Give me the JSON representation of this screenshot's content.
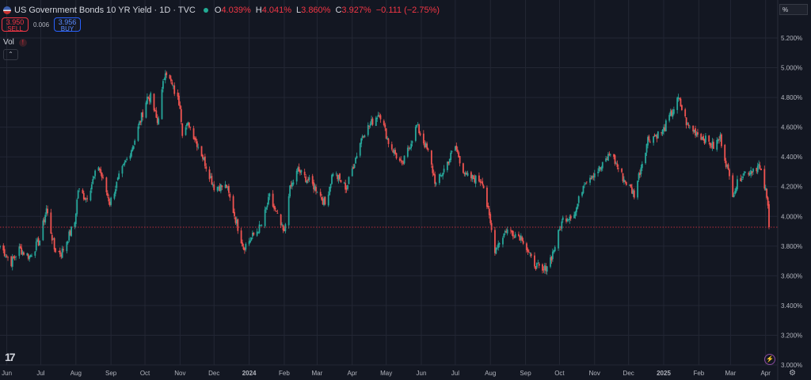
{
  "header": {
    "title": "US Government Bonds 10 YR Yield · 1D · TVC",
    "o_label": "O",
    "o_value": "4.039%",
    "h_label": "H",
    "h_value": "4.041%",
    "l_label": "L",
    "l_value": "3.860%",
    "c_label": "C",
    "c_value": "3.927%",
    "change": "−0.111 (−2.75%)"
  },
  "trade": {
    "sell_price": "3.950",
    "sell_label": "SELL",
    "spread": "0.006",
    "buy_price": "3.956",
    "buy_label": "BUY"
  },
  "volume_label": "Vol",
  "unit_toggle": "%",
  "colors": {
    "background": "#131722",
    "up": "#26a69a",
    "down": "#ef5350",
    "grid": "#2a2e39",
    "price_line": "#f23645"
  },
  "icons": [
    "us-flag-icon",
    "market-status-icon",
    "volume-warning-icon",
    "collapse-chevron-icon",
    "tradingview-logo-icon",
    "lightning-icon",
    "settings-gear-icon"
  ],
  "chart_data": {
    "type": "candlestick",
    "ylim": [
      3.0,
      5.3
    ],
    "y_ticks": [
      "5.200%",
      "5.000%",
      "4.800%",
      "4.600%",
      "4.400%",
      "4.200%",
      "4.000%",
      "3.800%",
      "3.600%",
      "3.400%",
      "3.200%",
      "3.000%"
    ],
    "x_ticks": [
      "Jun",
      "Jul",
      "Aug",
      "Sep",
      "Oct",
      "Nov",
      "Dec",
      "2024",
      "Feb",
      "Mar",
      "Apr",
      "May",
      "Jun",
      "Jul",
      "Aug",
      "Sep",
      "Oct",
      "Nov",
      "Dec",
      "2025",
      "Feb",
      "Mar",
      "Apr"
    ],
    "current_price": 3.927,
    "grid": true,
    "close_path": [
      [
        "2023-05-26",
        3.8
      ],
      [
        "2023-06-05",
        3.69
      ],
      [
        "2023-06-12",
        3.78
      ],
      [
        "2023-06-21",
        3.73
      ],
      [
        "2023-06-30",
        3.84
      ],
      [
        "2023-07-06",
        4.05
      ],
      [
        "2023-07-13",
        3.78
      ],
      [
        "2023-07-19",
        3.75
      ],
      [
        "2023-07-31",
        3.96
      ],
      [
        "2023-08-03",
        4.18
      ],
      [
        "2023-08-10",
        4.12
      ],
      [
        "2023-08-21",
        4.34
      ],
      [
        "2023-08-31",
        4.09
      ],
      [
        "2023-09-08",
        4.26
      ],
      [
        "2023-09-21",
        4.49
      ],
      [
        "2023-10-03",
        4.8
      ],
      [
        "2023-10-06",
        4.8
      ],
      [
        "2023-10-12",
        4.63
      ],
      [
        "2023-10-19",
        4.99
      ],
      [
        "2023-10-27",
        4.84
      ],
      [
        "2023-11-01",
        4.75
      ],
      [
        "2023-11-03",
        4.57
      ],
      [
        "2023-11-09",
        4.62
      ],
      [
        "2023-11-20",
        4.42
      ],
      [
        "2023-12-01",
        4.2
      ],
      [
        "2023-12-12",
        4.2
      ],
      [
        "2023-12-27",
        3.79
      ],
      [
        "2024-01-12",
        3.94
      ],
      [
        "2024-01-19",
        4.13
      ],
      [
        "2024-02-01",
        3.88
      ],
      [
        "2024-02-05",
        4.16
      ],
      [
        "2024-02-13",
        4.31
      ],
      [
        "2024-03-01",
        4.18
      ],
      [
        "2024-03-08",
        4.08
      ],
      [
        "2024-03-15",
        4.3
      ],
      [
        "2024-03-27",
        4.19
      ],
      [
        "2024-04-10",
        4.55
      ],
      [
        "2024-04-25",
        4.7
      ],
      [
        "2024-05-03",
        4.5
      ],
      [
        "2024-05-15",
        4.34
      ],
      [
        "2024-05-28",
        4.61
      ],
      [
        "2024-06-07",
        4.43
      ],
      [
        "2024-06-14",
        4.21
      ],
      [
        "2024-07-01",
        4.47
      ],
      [
        "2024-07-10",
        4.27
      ],
      [
        "2024-07-25",
        4.24
      ],
      [
        "2024-08-05",
        3.78
      ],
      [
        "2024-08-15",
        3.91
      ],
      [
        "2024-08-29",
        3.86
      ],
      [
        "2024-09-06",
        3.71
      ],
      [
        "2024-09-16",
        3.62
      ],
      [
        "2024-09-24",
        3.73
      ],
      [
        "2024-10-04",
        3.98
      ],
      [
        "2024-10-15",
        4.03
      ],
      [
        "2024-10-23",
        4.24
      ],
      [
        "2024-11-07",
        4.33
      ],
      [
        "2024-11-15",
        4.43
      ],
      [
        "2024-11-26",
        4.26
      ],
      [
        "2024-12-06",
        4.15
      ],
      [
        "2024-12-18",
        4.52
      ],
      [
        "2024-12-31",
        4.57
      ],
      [
        "2025-01-14",
        4.79
      ],
      [
        "2025-01-22",
        4.61
      ],
      [
        "2025-02-03",
        4.54
      ],
      [
        "2025-02-14",
        4.47
      ],
      [
        "2025-02-20",
        4.53
      ],
      [
        "2025-03-03",
        4.16
      ],
      [
        "2025-03-11",
        4.28
      ],
      [
        "2025-03-26",
        4.34
      ],
      [
        "2025-04-01",
        4.17
      ],
      [
        "2025-04-03",
        4.06
      ],
      [
        "2025-04-04",
        3.93
      ]
    ]
  }
}
